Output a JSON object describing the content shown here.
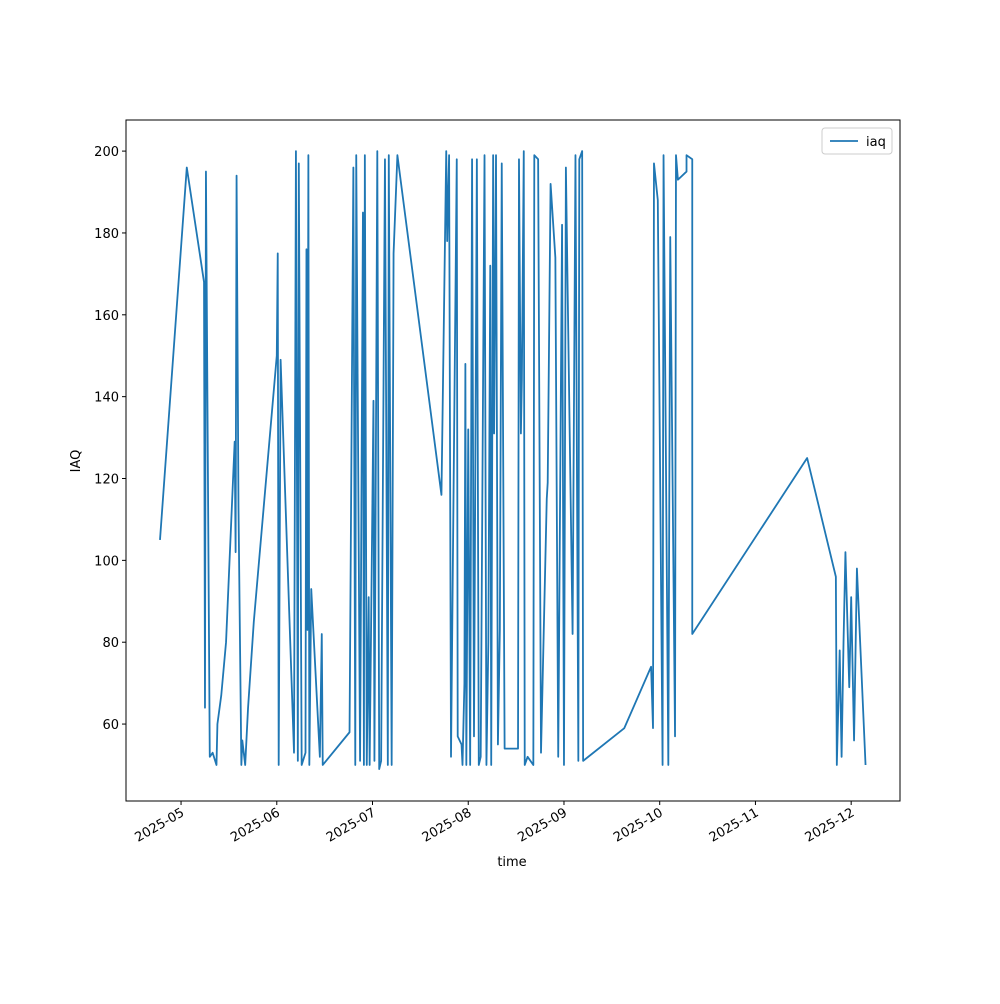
{
  "chart_data": {
    "type": "line",
    "xlabel": "time",
    "ylabel": "IAQ",
    "xlim": [
      4.425,
      12.51
    ],
    "xticks": [
      {
        "value": 5,
        "label": "2025-05"
      },
      {
        "value": 6,
        "label": "2025-06"
      },
      {
        "value": 7,
        "label": "2025-07"
      },
      {
        "value": 8,
        "label": "2025-08"
      },
      {
        "value": 9,
        "label": "2025-09"
      },
      {
        "value": 10,
        "label": "2025-10"
      },
      {
        "value": 11,
        "label": "2025-11"
      },
      {
        "value": 12,
        "label": "2025-12"
      }
    ],
    "ylim": [
      41.2,
      207.6
    ],
    "yticks": [
      60,
      80,
      100,
      120,
      140,
      160,
      180,
      200
    ],
    "legend": "upper right",
    "series": [
      {
        "name": "iaq",
        "color": "#1f77b4",
        "x": [
          4.78,
          5.06,
          5.24,
          5.25,
          5.26,
          5.3,
          5.33,
          5.37,
          5.38,
          5.42,
          5.47,
          5.56,
          5.57,
          5.58,
          5.6,
          5.63,
          5.64,
          5.67,
          5.7,
          5.76,
          6.0,
          6.01,
          6.02,
          6.04,
          6.18,
          6.2,
          6.22,
          6.23,
          6.26,
          6.3,
          6.31,
          6.32,
          6.33,
          6.34,
          6.36,
          6.45,
          6.47,
          6.48,
          6.76,
          6.8,
          6.82,
          6.83,
          6.87,
          6.9,
          6.91,
          6.92,
          6.94,
          6.96,
          6.97,
          7.01,
          7.02,
          7.05,
          7.07,
          7.09,
          7.13,
          7.16,
          7.17,
          7.2,
          7.22,
          7.26,
          7.72,
          7.77,
          7.78,
          7.8,
          7.82,
          7.88,
          7.89,
          7.93,
          7.94,
          7.96,
          7.97,
          7.98,
          8.0,
          8.02,
          8.04,
          8.06,
          8.09,
          8.11,
          8.13,
          8.17,
          8.19,
          8.21,
          8.23,
          8.24,
          8.26,
          8.27,
          8.29,
          8.31,
          8.33,
          8.35,
          8.38,
          8.52,
          8.53,
          8.55,
          8.56,
          8.58,
          8.59,
          8.62,
          8.68,
          8.69,
          8.73,
          8.76,
          8.82,
          8.83,
          8.86,
          8.91,
          8.94,
          8.98,
          9.0,
          9.02,
          9.09,
          9.12,
          9.15,
          9.16,
          9.19,
          9.2,
          9.63,
          9.91,
          9.93,
          9.94,
          9.98,
          10.03,
          10.04,
          10.09,
          10.11,
          10.16,
          10.17,
          10.19,
          10.28,
          10.28,
          10.34,
          10.34,
          11.54,
          11.84,
          11.85,
          11.88,
          11.9,
          11.92,
          11.94,
          11.98,
          12.0,
          12.03,
          12.06,
          12.15
        ],
        "values": [
          105,
          196,
          168,
          64,
          195,
          52,
          53,
          50,
          60,
          67,
          80,
          129,
          102,
          194,
          113,
          50,
          56,
          50,
          64,
          85,
          150,
          175,
          50,
          149,
          53,
          200,
          51,
          197,
          50,
          53,
          176,
          83,
          199,
          50,
          93,
          52,
          82,
          50,
          58,
          196,
          50,
          199,
          51,
          185,
          50,
          199,
          50,
          91,
          50,
          139,
          51,
          200,
          49,
          51,
          198,
          50,
          199,
          50,
          175,
          199,
          116,
          200,
          178,
          199,
          52,
          198,
          57,
          55,
          50,
          70,
          148,
          50,
          132,
          50,
          198,
          57,
          198,
          50,
          52,
          199,
          50,
          80,
          172,
          50,
          199,
          131,
          199,
          55,
          83,
          197,
          54,
          54,
          198,
          131,
          144,
          200,
          50,
          52,
          50,
          199,
          198,
          53,
          115,
          119,
          192,
          174,
          52,
          182,
          50,
          196,
          82,
          199,
          51,
          198,
          200,
          51,
          59,
          74,
          59,
          197,
          188,
          50,
          199,
          50,
          179,
          57,
          199,
          193,
          195,
          199,
          198,
          82,
          125,
          96,
          50,
          78,
          52,
          80,
          102,
          69,
          91,
          56,
          98,
          50
        ]
      }
    ]
  }
}
